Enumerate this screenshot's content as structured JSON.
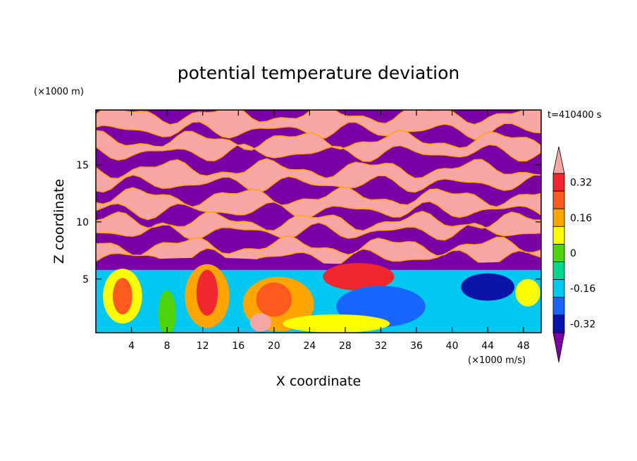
{
  "chart_data": {
    "type": "heatmap",
    "title": "potential temperature deviation",
    "xlabel": "X coordinate",
    "ylabel": "Z coordinate",
    "x_unit": "(×1000 m/s)",
    "y_unit": "(×1000 m)",
    "time_label": "t=410400 s",
    "x_ticks": [
      4,
      8,
      12,
      16,
      20,
      24,
      28,
      32,
      36,
      40,
      44,
      48
    ],
    "y_ticks": [
      5,
      10,
      15
    ],
    "xlim": [
      0,
      50
    ],
    "ylim": [
      0.3,
      19.8
    ],
    "colorbar": {
      "tick_labels": [
        "0.32",
        "0.16",
        "0",
        "-0.16",
        "-0.32"
      ],
      "tick_values": [
        0.32,
        0.16,
        0,
        -0.16,
        -0.32
      ],
      "levels": [
        -0.4,
        -0.32,
        -0.24,
        -0.16,
        -0.08,
        0,
        0.08,
        0.16,
        0.24,
        0.32,
        0.4
      ],
      "colors": [
        "#7a00a6",
        "#0a14a8",
        "#1766ff",
        "#00c8f0",
        "#00d88e",
        "#4ed40a",
        "#ffff00",
        "#ffa500",
        "#ff5a1e",
        "#f0282d",
        "#f7a6a6"
      ],
      "extend": "both"
    },
    "field_description": "Layered contour fill: alternating pink (positive) and purple (negative) bands above z≈7; turbulent mixed-color convective region below z≈6."
  }
}
